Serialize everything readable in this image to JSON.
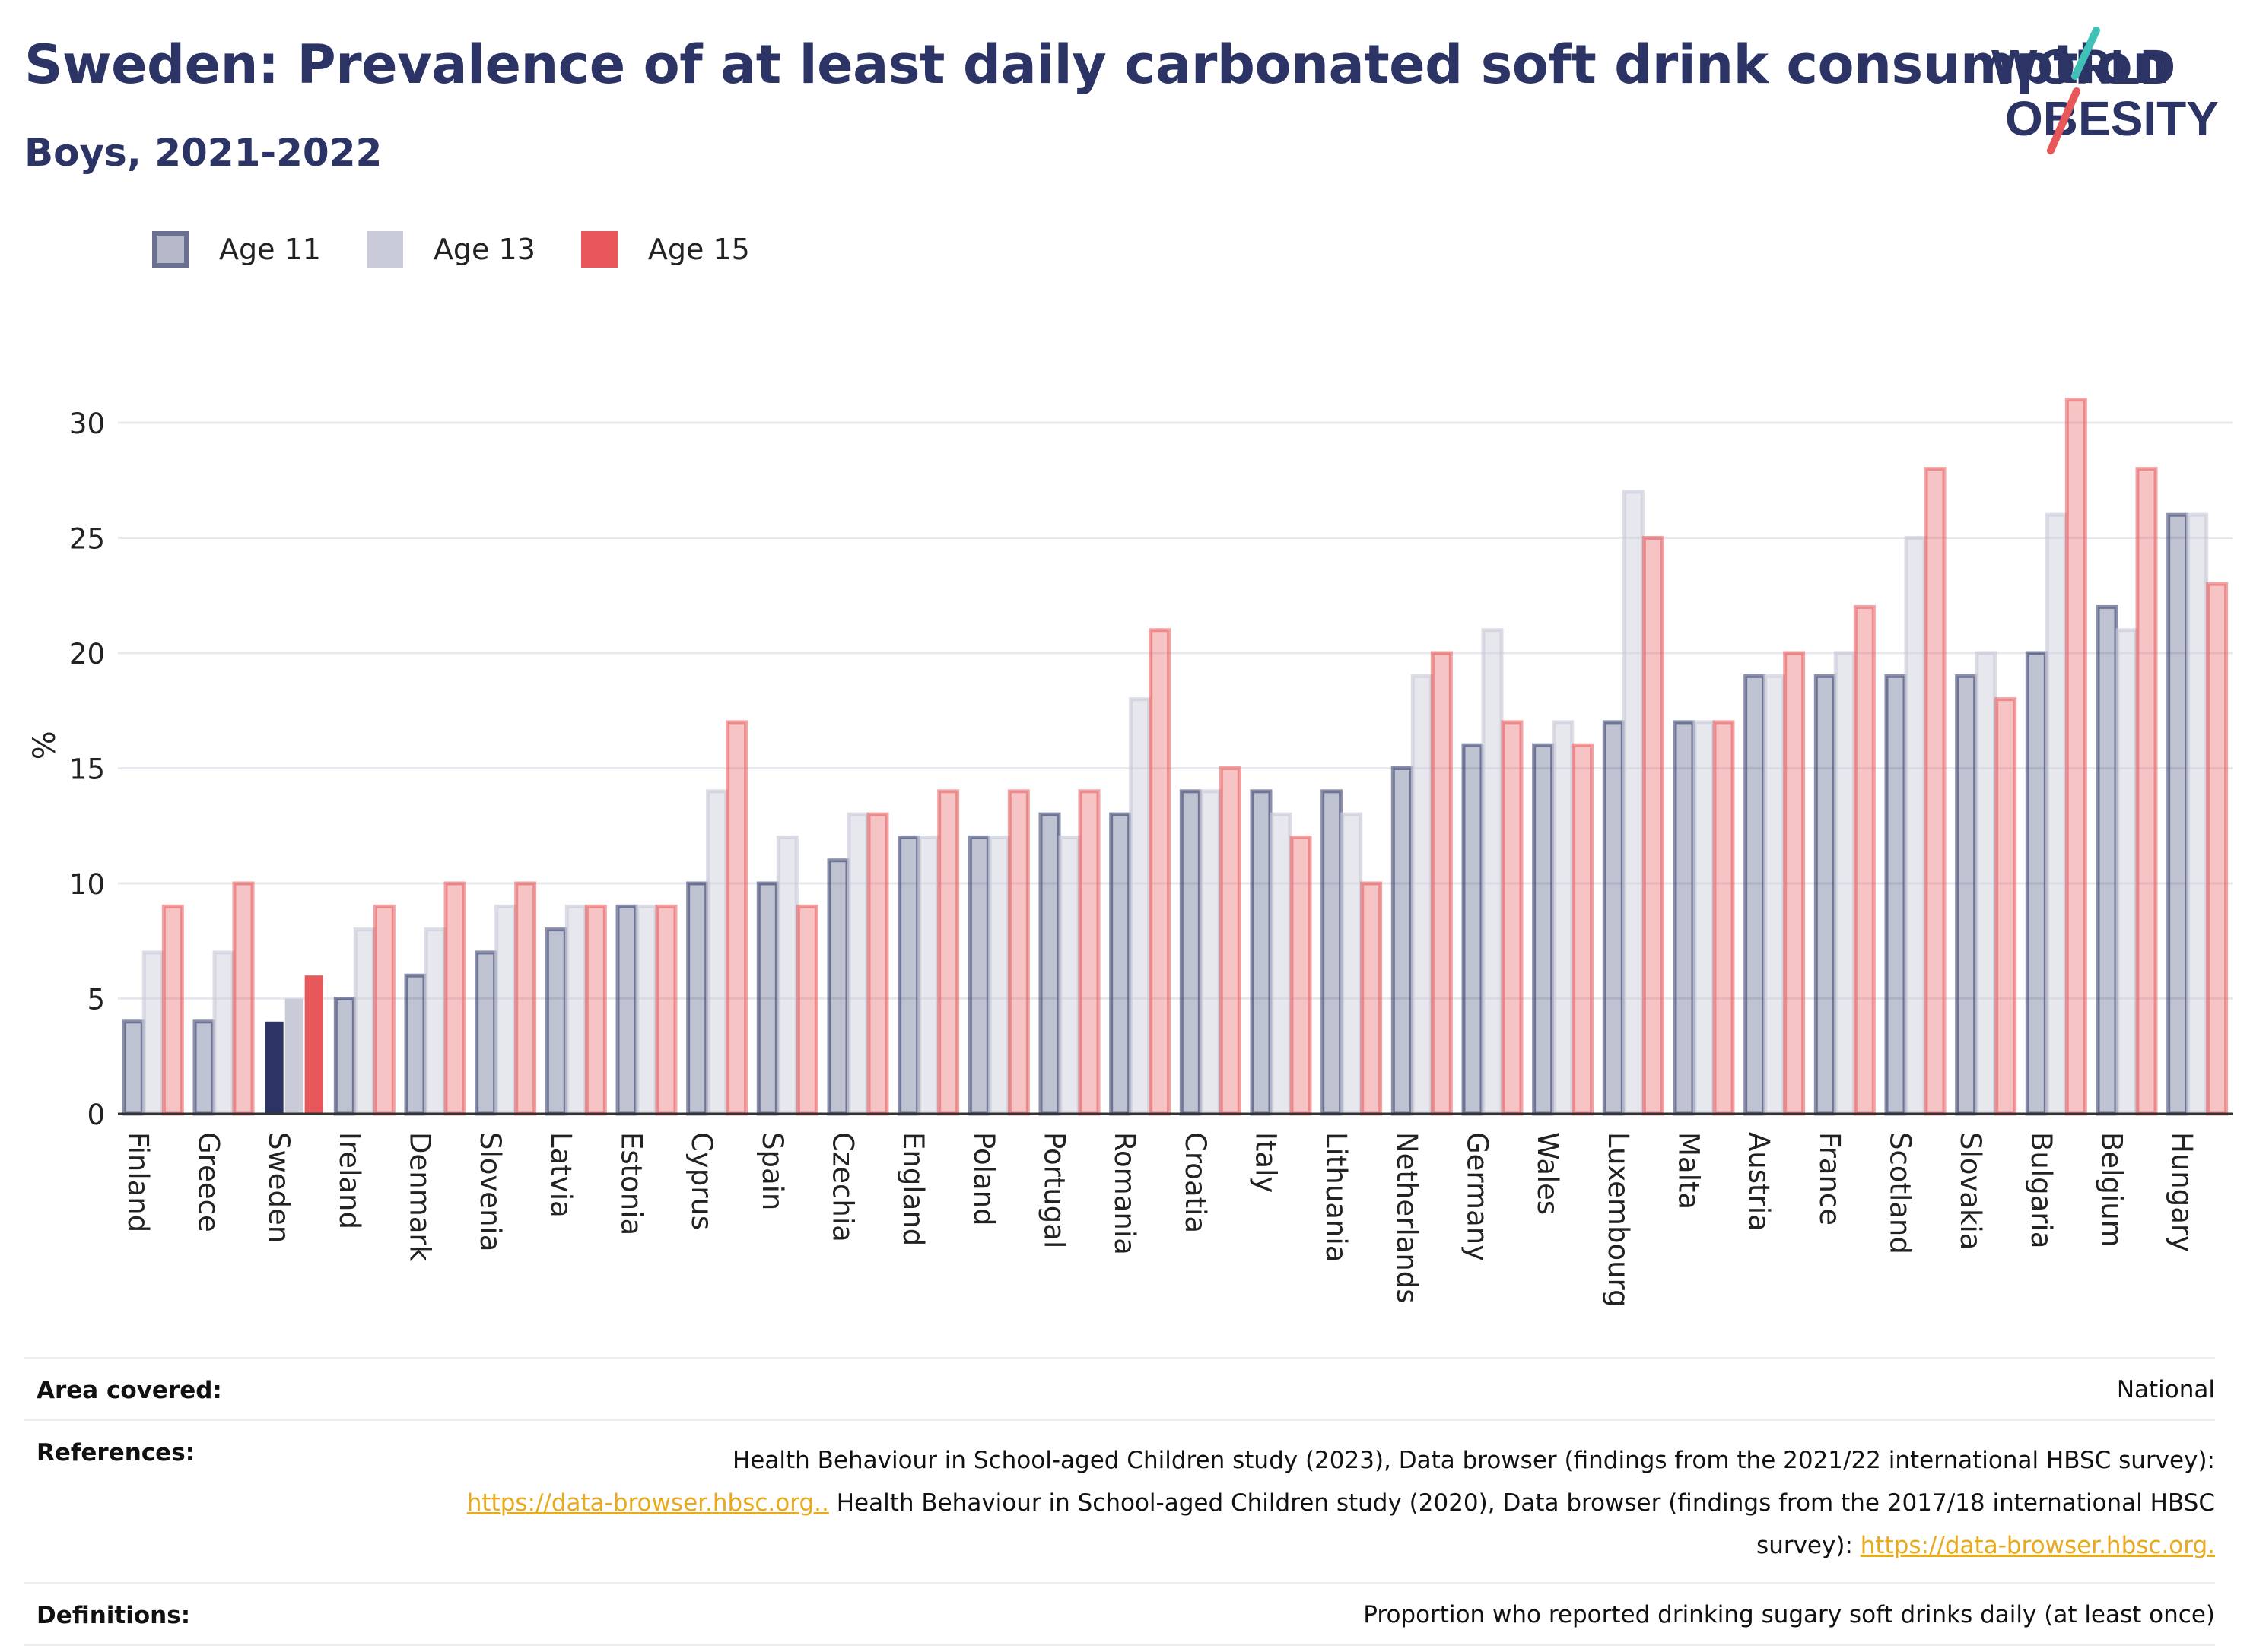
{
  "header": {
    "title": "Sweden: Prevalence of at least daily carbonated soft drink consumption",
    "subtitle": "Boys, 2021-2022"
  },
  "logo": {
    "line1": "WORLD",
    "line2": "OBESITY",
    "icon": "world-obesity-slash-logo"
  },
  "colors": {
    "title": "#2b3465",
    "age11": "#2b3465",
    "age13": "#c9cbd8",
    "age15": "#e8575a",
    "link": "#e8a91c",
    "grid": "#e8e8ee"
  },
  "legend": [
    {
      "label": "Age 11",
      "key": "age11"
    },
    {
      "label": "Age 13",
      "key": "age13"
    },
    {
      "label": "Age 15",
      "key": "age15"
    }
  ],
  "chart_data": {
    "type": "bar",
    "ylabel": "%",
    "xlabel": "",
    "ylim": [
      0,
      32
    ],
    "yticks": [
      0,
      5,
      10,
      15,
      20,
      25,
      30
    ],
    "grid": true,
    "legend_position": "top-left",
    "highlight": "Sweden",
    "categories": [
      "Finland",
      "Greece",
      "Sweden",
      "Ireland",
      "Denmark",
      "Slovenia",
      "Latvia",
      "Estonia",
      "Cyprus",
      "Spain",
      "Czechia",
      "England",
      "Poland",
      "Portugal",
      "Romania",
      "Croatia",
      "Italy",
      "Lithuania",
      "Netherlands",
      "Germany",
      "Wales",
      "Luxembourg",
      "Malta",
      "Austria",
      "France",
      "Scotland",
      "Slovakia",
      "Bulgaria",
      "Belgium",
      "Hungary"
    ],
    "series": [
      {
        "name": "Age 11",
        "values": [
          4,
          4,
          4,
          5,
          6,
          7,
          8,
          9,
          10,
          10,
          11,
          12,
          12,
          13,
          13,
          14,
          14,
          14,
          15,
          16,
          16,
          17,
          17,
          19,
          19,
          19,
          19,
          20,
          22,
          26
        ]
      },
      {
        "name": "Age 13",
        "values": [
          7,
          7,
          5,
          8,
          8,
          9,
          9,
          9,
          14,
          12,
          13,
          12,
          12,
          12,
          18,
          14,
          13,
          13,
          19,
          21,
          17,
          27,
          17,
          19,
          20,
          25,
          20,
          26,
          21,
          26
        ]
      },
      {
        "name": "Age 15",
        "values": [
          9,
          10,
          6,
          9,
          10,
          10,
          9,
          9,
          17,
          9,
          13,
          14,
          14,
          14,
          21,
          15,
          12,
          10,
          20,
          17,
          16,
          25,
          17,
          20,
          22,
          28,
          18,
          31,
          28,
          23
        ]
      }
    ]
  },
  "info": {
    "area_label": "Area covered:",
    "area_value": "National",
    "references_label": "References:",
    "ref_text_1": "Health Behaviour in School-aged Children study (2023), Data browser (findings from the 2021/22 international HBSC survey):",
    "ref_link_1": "https://data-browser.hbsc.org..",
    "ref_text_2": " Health Behaviour in School-aged Children study (2020), Data browser (findings from the 2017/18 international HBSC survey): ",
    "ref_link_2": "https://data-browser.hbsc.org.",
    "definitions_label": "Definitions:",
    "definitions_value": "Proportion who reported drinking sugary soft drinks daily (at least once)"
  }
}
